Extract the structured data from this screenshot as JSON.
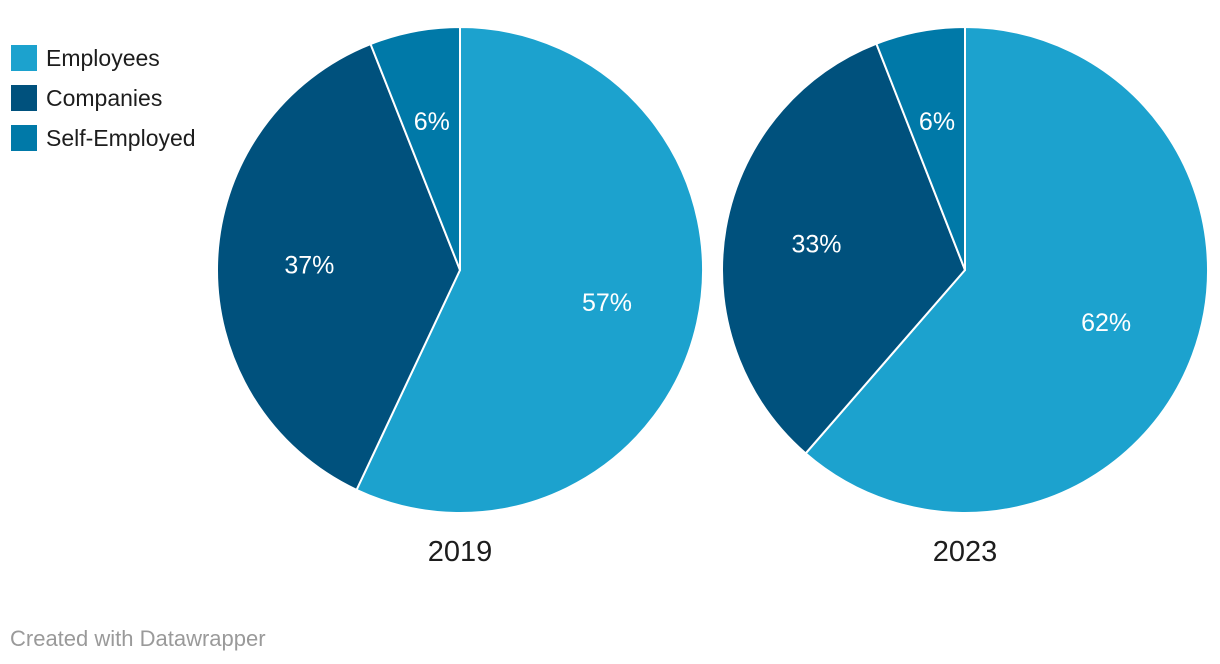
{
  "legend": {
    "items": [
      {
        "label": "Employees",
        "color": "#1CA2CE"
      },
      {
        "label": "Companies",
        "color": "#00517D"
      },
      {
        "label": "Self-Employed",
        "color": "#0079A8"
      }
    ]
  },
  "chart_data": {
    "type": "pie",
    "title": "",
    "categories": [
      "Employees",
      "Companies",
      "Self-Employed"
    ],
    "colors": [
      "#1CA2CE",
      "#00517D",
      "#0079A8"
    ],
    "slice_label_color": "#ffffff",
    "start_angle_deg": 0,
    "direction": "clockwise",
    "legend_position": "top-left",
    "charts": [
      {
        "label": "2019",
        "values": [
          57,
          37,
          6
        ],
        "display_labels": [
          "57%",
          "37%",
          "6%"
        ]
      },
      {
        "label": "2023",
        "values": [
          62,
          33,
          6
        ],
        "display_labels": [
          "62%",
          "33%",
          "6%"
        ]
      }
    ]
  },
  "footer": {
    "credit": "Created with Datawrapper"
  }
}
